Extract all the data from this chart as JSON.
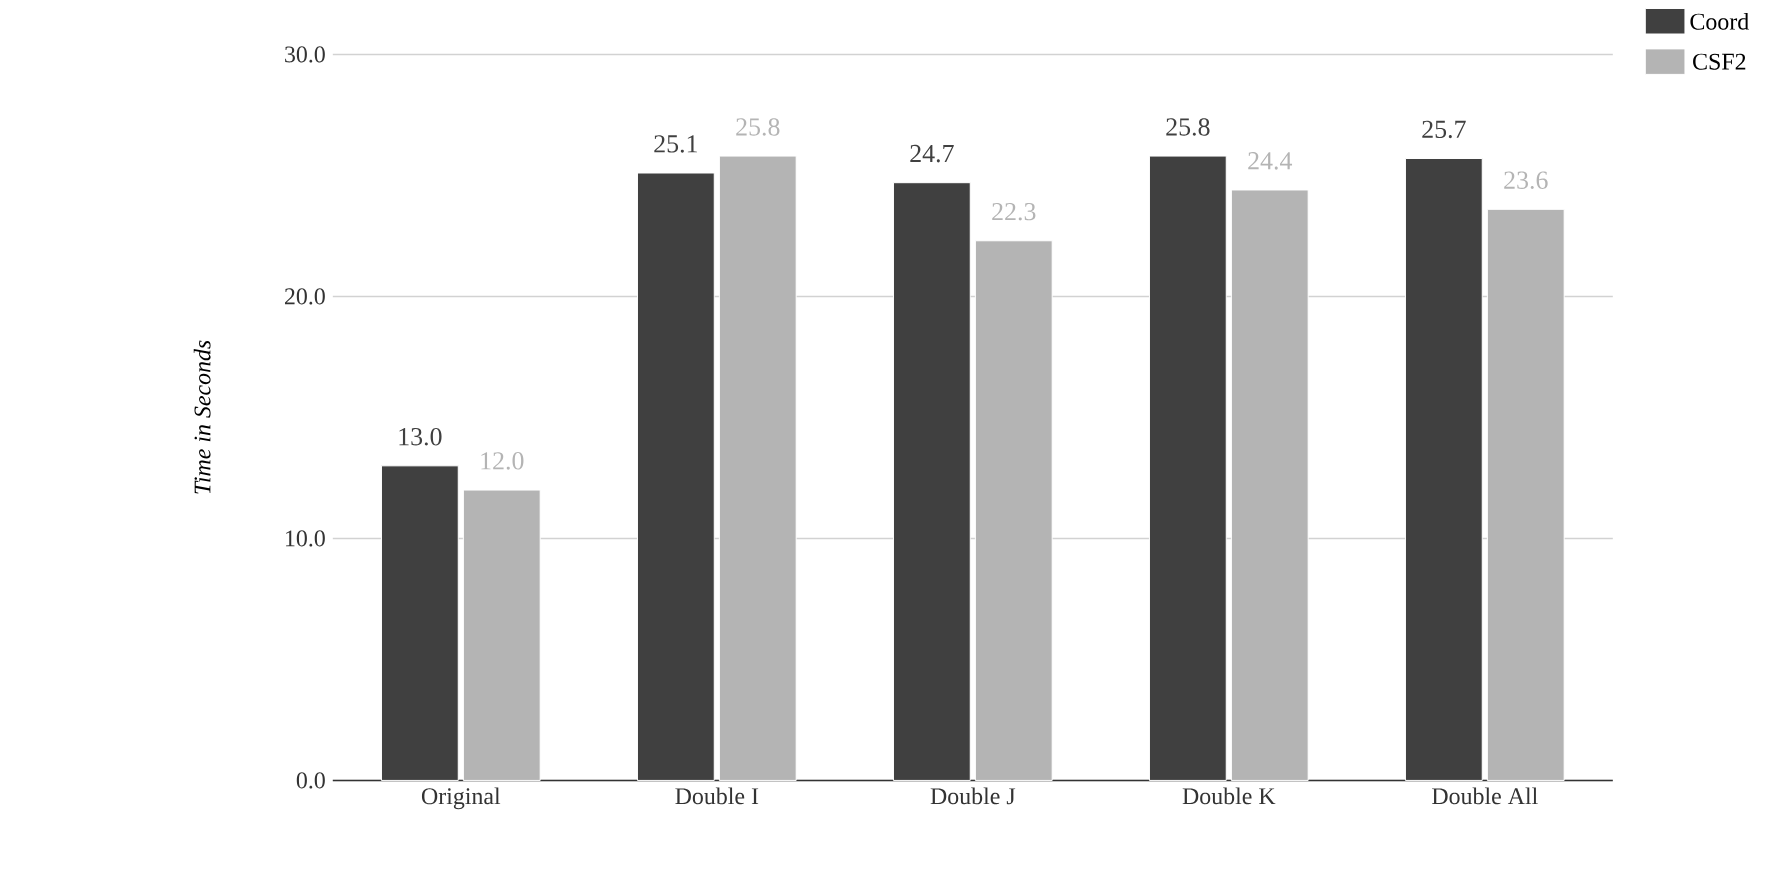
{
  "chart_data": {
    "type": "bar",
    "ylabel": "Time in Seconds",
    "categories": [
      "Original",
      "Double I",
      "Double J",
      "Double K",
      "Double All"
    ],
    "series": [
      {
        "name": "Coord",
        "color": "#404040",
        "values": [
          13.0,
          25.1,
          24.7,
          25.8,
          25.7
        ],
        "value_labels": [
          "13.0",
          "25.1",
          "24.7",
          "25.8",
          "25.7"
        ]
      },
      {
        "name": "CSF2",
        "color": "#b4b4b4",
        "values": [
          12.0,
          25.8,
          22.3,
          24.4,
          23.6
        ],
        "value_labels": [
          "12.0",
          "25.8",
          "22.3",
          "24.4",
          "23.6"
        ]
      }
    ],
    "ylim": [
      0,
      30
    ],
    "yticks": [
      {
        "value": 0,
        "label": "0.0"
      },
      {
        "value": 10,
        "label": "10.0"
      },
      {
        "value": 20,
        "label": "20.0"
      },
      {
        "value": 30,
        "label": "30.0"
      }
    ],
    "grid": "y",
    "legend": "top right"
  }
}
